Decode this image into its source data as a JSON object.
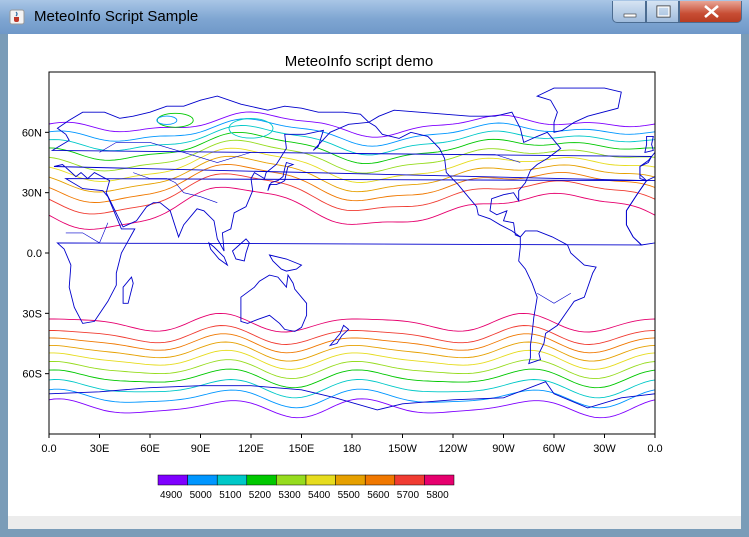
{
  "window": {
    "title": "MeteoInfo Script Sample"
  },
  "map": {
    "title": "MeteoInfo script demo",
    "x_ticks": [
      "0.0",
      "30E",
      "60E",
      "90E",
      "120E",
      "150E",
      "180",
      "150W",
      "120W",
      "90W",
      "60W",
      "30W",
      "0.0"
    ],
    "y_ticks": [
      "60N",
      "30N",
      "0.0",
      "30S",
      "60S"
    ],
    "projection": "equirectangular",
    "lon_range": [
      0,
      360
    ],
    "lat_range": [
      -90,
      90
    ],
    "coastline_color": "#0000cc"
  },
  "legend": {
    "labels": [
      "4900",
      "5000",
      "5100",
      "5200",
      "5300",
      "5400",
      "5500",
      "5600",
      "5700",
      "5800"
    ],
    "colors": [
      "#7f00ff",
      "#0096ff",
      "#00c8c8",
      "#00c800",
      "#96dc1e",
      "#e6dc1e",
      "#e6a000",
      "#f07800",
      "#f03c32",
      "#e6006e"
    ]
  },
  "contours": {
    "levels": [
      4900,
      5000,
      5100,
      5200,
      5300,
      5400,
      5500,
      5600,
      5700,
      5800
    ],
    "colors": [
      "#7f00ff",
      "#0096ff",
      "#00c8c8",
      "#00c800",
      "#96dc1e",
      "#e6dc1e",
      "#e6a000",
      "#f07800",
      "#f03c32",
      "#e6006e"
    ]
  }
}
